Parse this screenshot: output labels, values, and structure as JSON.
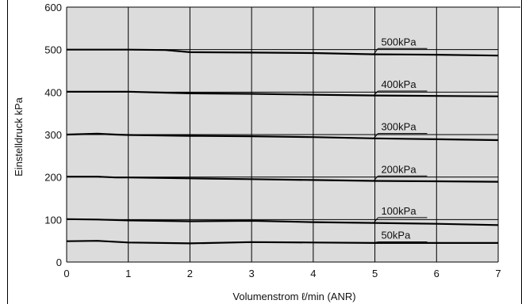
{
  "chart_data": {
    "type": "line",
    "title": "",
    "xlabel": "Volumenstrom ℓ/min (ANR)",
    "ylabel": "Einstelldruck kPa",
    "xlim": [
      0,
      7
    ],
    "ylim": [
      0,
      600
    ],
    "x_ticks": [
      "0",
      "1",
      "2",
      "3",
      "4",
      "5",
      "6",
      "7"
    ],
    "y_ticks": [
      "0",
      "100",
      "200",
      "300",
      "400",
      "500",
      "600"
    ],
    "grid": true,
    "legend": "none",
    "series": [
      {
        "name": "500kPa",
        "points": [
          [
            0,
            500
          ],
          [
            0.5,
            500
          ],
          [
            1,
            500
          ],
          [
            1.6,
            499
          ],
          [
            2,
            494
          ],
          [
            3,
            493
          ],
          [
            4,
            492
          ],
          [
            5,
            489
          ],
          [
            6,
            488
          ],
          [
            7,
            486
          ]
        ],
        "label_x": 5.05,
        "label_y": 510
      },
      {
        "name": "400kPa",
        "points": [
          [
            0,
            401
          ],
          [
            0.5,
            401
          ],
          [
            1,
            401
          ],
          [
            1.5,
            399
          ],
          [
            2,
            397
          ],
          [
            3,
            396
          ],
          [
            4,
            394
          ],
          [
            5,
            392
          ],
          [
            6,
            391
          ],
          [
            7,
            390
          ]
        ],
        "label_x": 5.05,
        "label_y": 410
      },
      {
        "name": "300kPa",
        "points": [
          [
            0,
            300
          ],
          [
            0.5,
            302
          ],
          [
            0.8,
            300
          ],
          [
            1,
            299
          ],
          [
            2,
            297
          ],
          [
            3,
            296
          ],
          [
            4,
            294
          ],
          [
            5,
            291
          ],
          [
            6,
            289
          ],
          [
            7,
            287
          ]
        ],
        "label_x": 5.05,
        "label_y": 310
      },
      {
        "name": "200kPa",
        "points": [
          [
            0,
            201
          ],
          [
            0.5,
            201
          ],
          [
            0.8,
            199
          ],
          [
            1,
            199
          ],
          [
            2,
            197
          ],
          [
            3,
            195
          ],
          [
            4,
            193
          ],
          [
            5,
            191
          ],
          [
            6,
            190
          ],
          [
            7,
            189
          ]
        ],
        "label_x": 5.05,
        "label_y": 210
      },
      {
        "name": "100kPa",
        "points": [
          [
            0,
            101
          ],
          [
            0.5,
            100
          ],
          [
            1,
            98
          ],
          [
            2,
            96
          ],
          [
            3,
            97
          ],
          [
            4,
            94
          ],
          [
            5,
            92
          ],
          [
            6,
            90
          ],
          [
            7,
            87
          ]
        ],
        "label_x": 5.05,
        "label_y": 112
      },
      {
        "name": "50kPa",
        "points": [
          [
            0,
            49
          ],
          [
            0.5,
            50
          ],
          [
            1,
            46
          ],
          [
            2,
            44
          ],
          [
            3,
            47
          ],
          [
            4,
            46
          ],
          [
            5,
            45
          ],
          [
            6,
            45
          ],
          [
            7,
            45
          ]
        ],
        "label_x": 5.05,
        "label_y": 55
      }
    ]
  }
}
